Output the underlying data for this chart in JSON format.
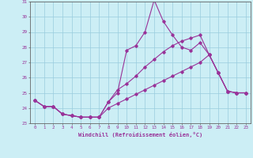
{
  "xlabel": "Windchill (Refroidissement éolien,°C)",
  "bg_color": "#cceef5",
  "line_color": "#993399",
  "grid_color": "#99ccdd",
  "axis_color": "#333333",
  "tick_color": "#993399",
  "xlim": [
    -0.5,
    23.5
  ],
  "ylim": [
    23,
    31
  ],
  "yticks": [
    23,
    24,
    25,
    26,
    27,
    28,
    29,
    30,
    31
  ],
  "xticks": [
    0,
    1,
    2,
    3,
    4,
    5,
    6,
    7,
    8,
    9,
    10,
    11,
    12,
    13,
    14,
    15,
    16,
    17,
    18,
    19,
    20,
    21,
    22,
    23
  ],
  "line1_x": [
    0,
    1,
    2,
    3,
    4,
    5,
    6,
    7,
    8,
    9,
    10,
    11,
    12,
    13,
    14,
    15,
    16,
    17,
    18,
    19,
    20,
    21,
    22,
    23
  ],
  "line1_y": [
    24.5,
    24.1,
    24.1,
    23.6,
    23.5,
    23.4,
    23.4,
    23.4,
    24.4,
    25.0,
    27.8,
    28.1,
    29.0,
    31.1,
    29.7,
    28.8,
    28.0,
    27.8,
    28.3,
    27.5,
    26.3,
    25.1,
    25.0,
    25.0
  ],
  "line2_x": [
    0,
    1,
    2,
    3,
    4,
    5,
    6,
    7,
    8,
    9,
    10,
    11,
    12,
    13,
    14,
    15,
    16,
    17,
    18,
    19,
    20,
    21,
    22,
    23
  ],
  "line2_y": [
    24.5,
    24.1,
    24.1,
    23.6,
    23.5,
    23.4,
    23.4,
    23.4,
    24.4,
    25.2,
    25.6,
    26.1,
    26.7,
    27.2,
    27.7,
    28.1,
    28.4,
    28.6,
    28.8,
    27.5,
    26.3,
    25.1,
    25.0,
    25.0
  ],
  "line3_x": [
    0,
    1,
    2,
    3,
    4,
    5,
    6,
    7,
    8,
    9,
    10,
    11,
    12,
    13,
    14,
    15,
    16,
    17,
    18,
    19,
    20,
    21,
    22,
    23
  ],
  "line3_y": [
    24.5,
    24.1,
    24.1,
    23.6,
    23.5,
    23.4,
    23.4,
    23.4,
    24.0,
    24.3,
    24.6,
    24.9,
    25.2,
    25.5,
    25.8,
    26.1,
    26.4,
    26.7,
    27.0,
    27.5,
    26.3,
    25.1,
    25.0,
    25.0
  ]
}
